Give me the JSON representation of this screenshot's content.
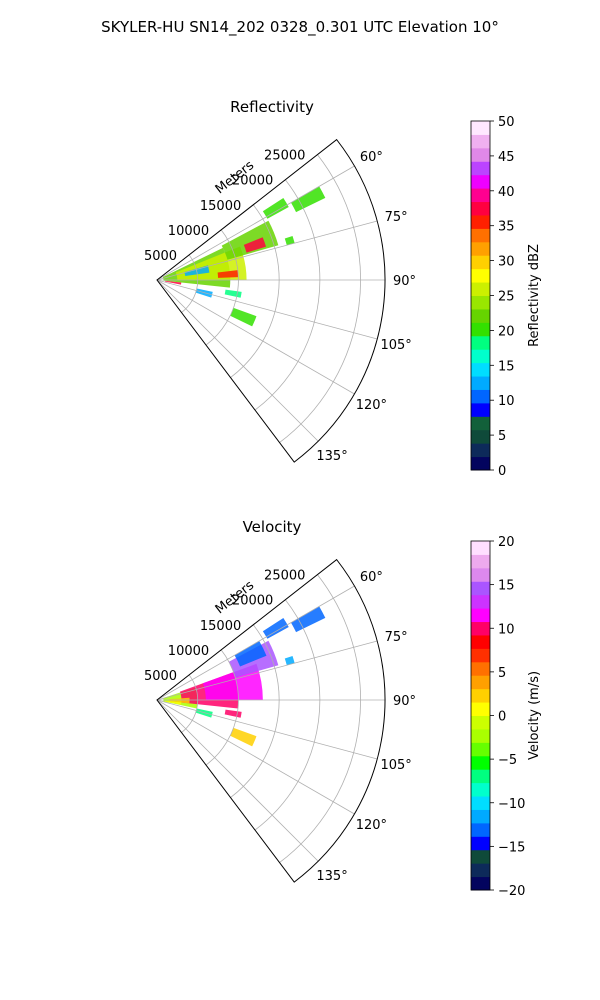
{
  "title": "SKYLER-HU  SN14_202  0328_0.301 UTC Elevation 10°",
  "chart_data": [
    {
      "type": "heatmap",
      "subtype": "polar-sector",
      "title": "Reflectivity",
      "range_label": "Meters",
      "range_ticks": [
        "5000",
        "10000",
        "15000",
        "20000",
        "25000"
      ],
      "angle_ticks": [
        "60°",
        "75°",
        "90°",
        "105°",
        "120°",
        "135°"
      ],
      "theta_range_deg": [
        52,
        143
      ],
      "r_range_m": [
        0,
        28000
      ],
      "grid": true,
      "colorbar": {
        "label": "Reflectivity dBZ",
        "range": [
          0,
          50
        ],
        "ticks": [
          "0",
          "5",
          "10",
          "15",
          "20",
          "25",
          "30",
          "35",
          "40",
          "45",
          "50"
        ],
        "colors": [
          "#03045e",
          "#0d2a5a",
          "#0f4a3a",
          "#12603a",
          "#0000ff",
          "#0066ff",
          "#00aaff",
          "#00ddff",
          "#00ffcc",
          "#00ff80",
          "#33e000",
          "#66d400",
          "#99e600",
          "#ccf000",
          "#ffff00",
          "#ffd000",
          "#ffa000",
          "#ff7000",
          "#ff2000",
          "#ff0040",
          "#ff0090",
          "#ee00ff",
          "#bb44ff",
          "#e088e8",
          "#f0b0f0",
          "#ffe8ff"
        ]
      },
      "echo_regions": [
        {
          "r": [
            800,
            9000
          ],
          "theta": [
            64,
            96
          ],
          "value": 22
        },
        {
          "r": [
            2500,
            11000
          ],
          "theta": [
            68,
            90
          ],
          "value": 26
        },
        {
          "r": [
            9000,
            15500
          ],
          "theta": [
            62,
            74
          ],
          "value": 22
        },
        {
          "r": [
            11500,
            14000
          ],
          "theta": [
            68,
            73
          ],
          "value": 38
        },
        {
          "r": [
            15500,
            18500
          ],
          "theta": [
            57,
            61
          ],
          "value": 20
        },
        {
          "r": [
            19000,
            23000
          ],
          "theta": [
            60,
            64
          ],
          "value": 20
        },
        {
          "r": [
            7500,
            10000
          ],
          "theta": [
            83,
            88
          ],
          "value": 36
        },
        {
          "r": [
            1000,
            3000
          ],
          "theta": [
            96,
            101
          ],
          "value": 38
        },
        {
          "r": [
            5000,
            7000
          ],
          "theta": [
            102,
            108
          ],
          "value": 12
        },
        {
          "r": [
            8500,
            10500
          ],
          "theta": [
            98,
            102
          ],
          "value": 18
        },
        {
          "r": [
            10000,
            13000
          ],
          "theta": [
            110,
            116
          ],
          "value": 20
        },
        {
          "r": [
            16500,
            17500
          ],
          "theta": [
            72,
            75
          ],
          "value": 20
        },
        {
          "r": [
            3500,
            6500
          ],
          "theta": [
            74,
            82
          ],
          "value": 12
        }
      ]
    },
    {
      "type": "heatmap",
      "subtype": "polar-sector",
      "title": "Velocity",
      "range_label": "Meters",
      "range_ticks": [
        "5000",
        "10000",
        "15000",
        "20000",
        "25000"
      ],
      "angle_ticks": [
        "60°",
        "75°",
        "90°",
        "105°",
        "120°",
        "135°"
      ],
      "theta_range_deg": [
        52,
        143
      ],
      "r_range_m": [
        0,
        28000
      ],
      "grid": true,
      "colorbar": {
        "label": "Velocity (m/s)",
        "range": [
          -20,
          20
        ],
        "ticks": [
          "−20",
          "−15",
          "−10",
          "−5",
          "0",
          "5",
          "10",
          "15",
          "20"
        ],
        "colors": [
          "#03045e",
          "#0d2a5a",
          "#0f4a3a",
          "#0000ff",
          "#0066ff",
          "#00aaff",
          "#00ddff",
          "#00ffcc",
          "#00ff80",
          "#00ff00",
          "#66ff00",
          "#aaff00",
          "#ccff00",
          "#ffff00",
          "#ffd000",
          "#ffa000",
          "#ff7000",
          "#ff3000",
          "#ff0000",
          "#ff0066",
          "#ff00ff",
          "#cc33ff",
          "#aa55ff",
          "#dd88ee",
          "#eeaaee",
          "#ffdfff"
        ]
      },
      "echo_regions": [
        {
          "r": [
            800,
            5000
          ],
          "theta": [
            72,
            102
          ],
          "value": -2
        },
        {
          "r": [
            3000,
            10000
          ],
          "theta": [
            70,
            96
          ],
          "value": 10
        },
        {
          "r": [
            6000,
            13000
          ],
          "theta": [
            70,
            90
          ],
          "value": 11
        },
        {
          "r": [
            10000,
            15500
          ],
          "theta": [
            62,
            74
          ],
          "value": 14
        },
        {
          "r": [
            11000,
            14500
          ],
          "theta": [
            60,
            68
          ],
          "value": -13
        },
        {
          "r": [
            15500,
            18500
          ],
          "theta": [
            57,
            61
          ],
          "value": -13
        },
        {
          "r": [
            19000,
            23000
          ],
          "theta": [
            60,
            64
          ],
          "value": -13
        },
        {
          "r": [
            1500,
            4000
          ],
          "theta": [
            86,
            96
          ],
          "value": 3
        },
        {
          "r": [
            1000,
            3000
          ],
          "theta": [
            96,
            101
          ],
          "value": 1
        },
        {
          "r": [
            5000,
            7000
          ],
          "theta": [
            102,
            108
          ],
          "value": -7
        },
        {
          "r": [
            8500,
            10500
          ],
          "theta": [
            98,
            102
          ],
          "value": 10
        },
        {
          "r": [
            10000,
            13000
          ],
          "theta": [
            110,
            116
          ],
          "value": 2
        },
        {
          "r": [
            16500,
            17500
          ],
          "theta": [
            72,
            75
          ],
          "value": -12
        }
      ]
    }
  ]
}
